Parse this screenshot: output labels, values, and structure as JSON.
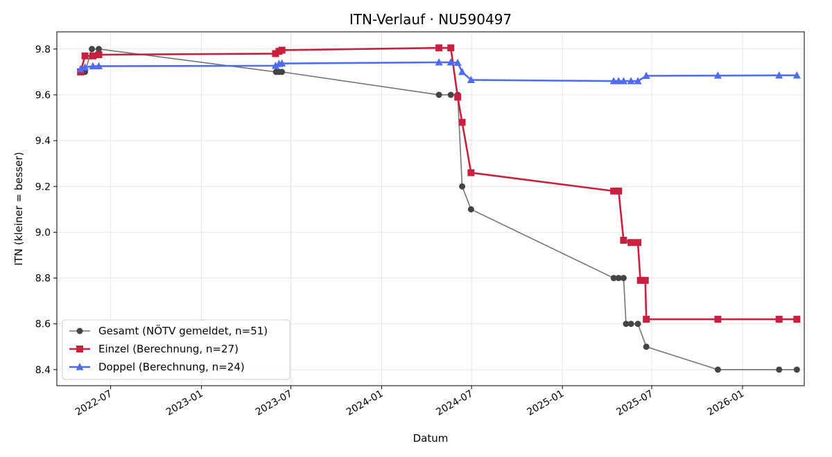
{
  "chart_data": {
    "type": "line",
    "title": "ITN-Verlauf · NU590497",
    "xlabel": "Datum",
    "ylabel": "ITN  (kleiner = besser)",
    "x_axis_type": "date",
    "xlim": [
      "2022-03-14",
      "2026-05-06"
    ],
    "ylim": [
      8.33,
      9.875
    ],
    "x_ticks": [
      "2022-07",
      "2023-01",
      "2023-07",
      "2024-01",
      "2024-07",
      "2025-01",
      "2025-07",
      "2026-01"
    ],
    "y_ticks": [
      "8.4",
      "8.6",
      "8.8",
      "9.0",
      "9.2",
      "9.4",
      "9.6",
      "9.8"
    ],
    "grid": true,
    "legend_position": "lower-left",
    "series": [
      {
        "name": "Gesamt (NÖTV gemeldet, n=51)",
        "color": "#444444",
        "marker": "circle",
        "points": [
          [
            "2022-05-01",
            9.7
          ],
          [
            "2022-05-06",
            9.7
          ],
          [
            "2022-05-10",
            9.7
          ],
          [
            "2022-05-24",
            9.8
          ],
          [
            "2022-06-07",
            9.8
          ],
          [
            "2023-06-01",
            9.7
          ],
          [
            "2023-06-07",
            9.7
          ],
          [
            "2023-06-13",
            9.7
          ],
          [
            "2024-04-26",
            9.6
          ],
          [
            "2024-05-20",
            9.6
          ],
          [
            "2024-06-03",
            9.6
          ],
          [
            "2024-06-12",
            9.2
          ],
          [
            "2024-06-30",
            9.1
          ],
          [
            "2025-04-15",
            8.8
          ],
          [
            "2025-04-25",
            8.8
          ],
          [
            "2025-05-05",
            8.8
          ],
          [
            "2025-05-10",
            8.6
          ],
          [
            "2025-05-20",
            8.6
          ],
          [
            "2025-06-03",
            8.6
          ],
          [
            "2025-06-20",
            8.5
          ],
          [
            "2025-11-12",
            8.4
          ],
          [
            "2026-03-16",
            8.4
          ],
          [
            "2026-04-21",
            8.4
          ]
        ]
      },
      {
        "name": "Einzel (Berechnung, n=27)",
        "color": "#c8203f",
        "marker": "square",
        "points": [
          [
            "2022-05-01",
            9.7
          ],
          [
            "2022-05-10",
            9.77
          ],
          [
            "2022-05-26",
            9.77
          ],
          [
            "2022-06-07",
            9.775
          ],
          [
            "2023-05-31",
            9.78
          ],
          [
            "2023-06-07",
            9.79
          ],
          [
            "2023-06-13",
            9.795
          ],
          [
            "2024-04-26",
            9.805
          ],
          [
            "2024-05-20",
            9.805
          ],
          [
            "2024-06-03",
            9.59
          ],
          [
            "2024-06-12",
            9.48
          ],
          [
            "2024-06-30",
            9.26
          ],
          [
            "2025-04-15",
            9.18
          ],
          [
            "2025-04-25",
            9.18
          ],
          [
            "2025-05-05",
            8.965
          ],
          [
            "2025-05-20",
            8.955
          ],
          [
            "2025-06-03",
            8.955
          ],
          [
            "2025-06-08",
            8.79
          ],
          [
            "2025-06-18",
            8.79
          ],
          [
            "2025-06-20",
            8.62
          ],
          [
            "2025-11-12",
            8.62
          ],
          [
            "2026-03-16",
            8.62
          ],
          [
            "2026-04-21",
            8.62
          ]
        ]
      },
      {
        "name": "Doppel (Berechnung, n=24)",
        "color": "#4f6cf0",
        "marker": "triangle",
        "points": [
          [
            "2022-05-01",
            9.712
          ],
          [
            "2022-05-10",
            9.72
          ],
          [
            "2022-05-26",
            9.725
          ],
          [
            "2022-06-07",
            9.725
          ],
          [
            "2023-05-31",
            9.727
          ],
          [
            "2023-06-07",
            9.735
          ],
          [
            "2023-06-13",
            9.737
          ],
          [
            "2024-04-26",
            9.742
          ],
          [
            "2024-05-20",
            9.742
          ],
          [
            "2024-06-03",
            9.74
          ],
          [
            "2024-06-12",
            9.7
          ],
          [
            "2024-06-30",
            9.665
          ],
          [
            "2025-04-15",
            9.66
          ],
          [
            "2025-04-25",
            9.66
          ],
          [
            "2025-05-05",
            9.66
          ],
          [
            "2025-05-20",
            9.66
          ],
          [
            "2025-06-03",
            9.66
          ],
          [
            "2025-06-20",
            9.683
          ],
          [
            "2025-11-12",
            9.684
          ],
          [
            "2026-03-16",
            9.685
          ],
          [
            "2026-04-21",
            9.685
          ]
        ]
      }
    ]
  }
}
